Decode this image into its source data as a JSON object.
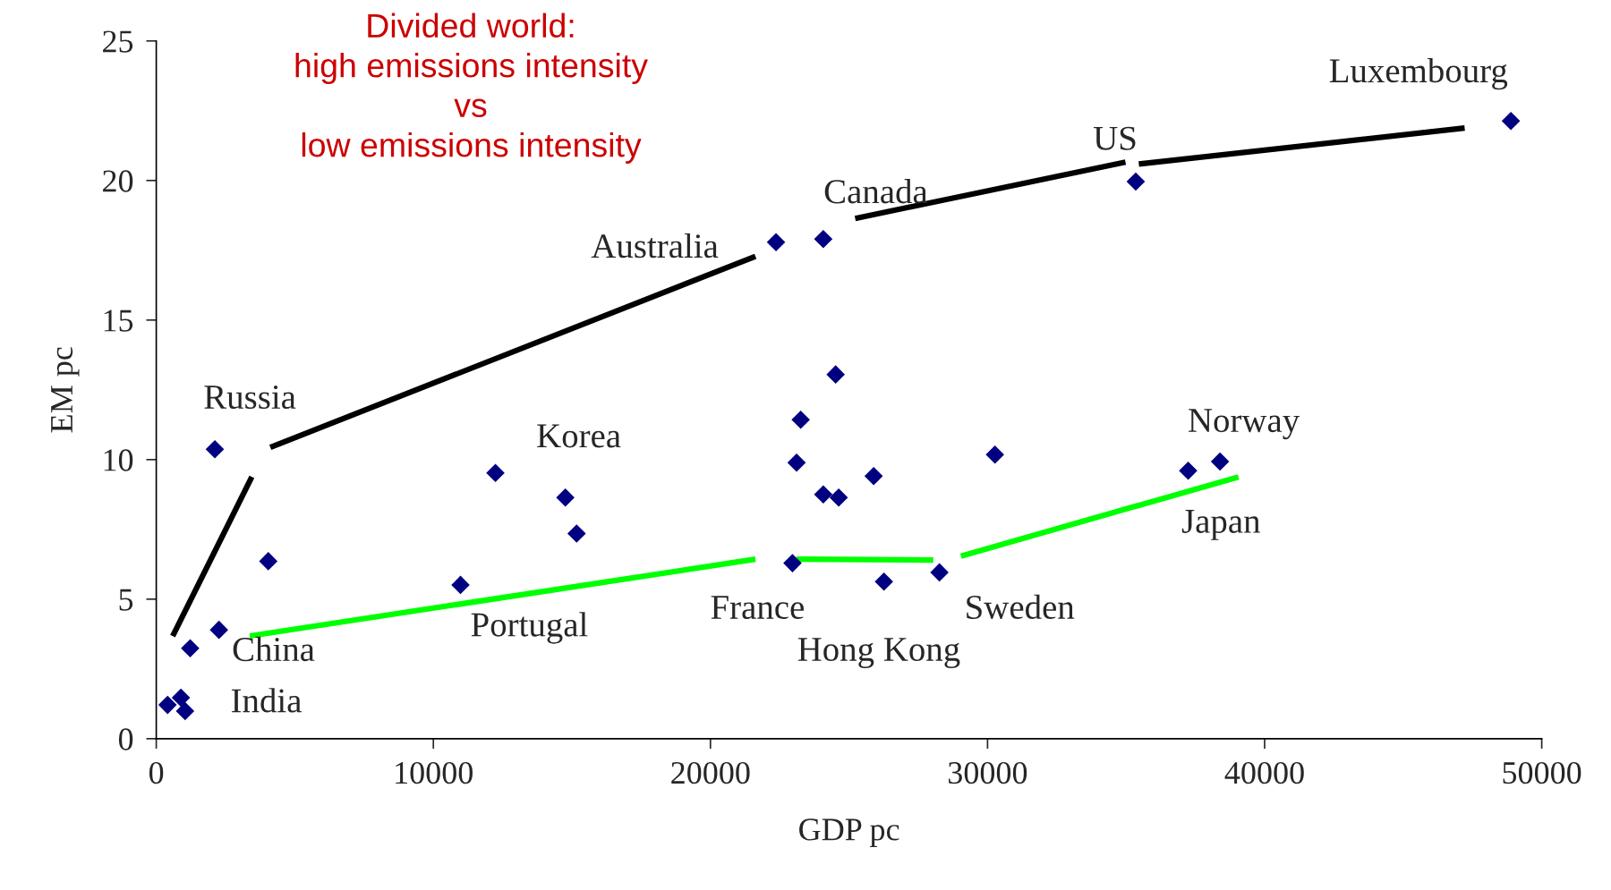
{
  "chart_data": {
    "type": "scatter",
    "xlabel": "GDP pc",
    "ylabel": "EM pc",
    "xlim": [
      0,
      50000
    ],
    "ylim": [
      0,
      25
    ],
    "xticks": [
      0,
      10000,
      20000,
      30000,
      40000,
      50000
    ],
    "yticks": [
      0,
      5,
      10,
      15,
      20,
      25
    ],
    "grid": false,
    "legend": false,
    "marker": "diamond",
    "series": [
      {
        "color": "#000080",
        "x": [
          408,
          890,
          1040,
          1224,
          2114,
          2263,
          4043,
          10979,
          12240,
          14763,
          15170,
          22366,
          22960,
          23108,
          23257,
          24072,
          24072,
          24518,
          24629,
          25890,
          26261,
          28264,
          30267,
          35349,
          37240,
          38390,
          48887
        ],
        "values": [
          1.21,
          1.47,
          0.99,
          3.24,
          10.37,
          3.9,
          6.36,
          5.51,
          9.52,
          8.64,
          7.35,
          17.79,
          6.29,
          9.89,
          11.43,
          17.9,
          8.75,
          13.05,
          8.64,
          9.41,
          5.63,
          5.96,
          10.18,
          19.96,
          9.6,
          9.93,
          22.13
        ]
      },
      {
        "type": "line",
        "color": "#000000",
        "marker": "none",
        "x": [
          593,
          3449,
          3800,
          4117,
          21624,
          23000,
          25223,
          34978,
          35200,
          35460,
          47219
        ],
        "values": [
          3.68,
          9.38,
          null,
          10.44,
          17.28,
          null,
          18.64,
          20.66,
          null,
          20.59,
          21.88
        ]
      },
      {
        "type": "line",
        "color": "#00ff00",
        "marker": "none",
        "x": [
          3375,
          21624,
          22300,
          23108,
          28041,
          28500,
          29042,
          39057
        ],
        "values": [
          3.68,
          6.43,
          null,
          6.43,
          6.4,
          null,
          6.54,
          9.38
        ]
      }
    ],
    "annotations": [
      "Divided world:\nhigh emissions intensity\nvs\nlow emissions intensity",
      {
        "text": "Luxembourg",
        "x": 48887,
        "y": 22.13
      },
      {
        "text": "US",
        "x": 35349,
        "y": 19.96
      },
      {
        "text": "Canada",
        "x": 24072,
        "y": 17.9
      },
      {
        "text": "Australia",
        "x": 22366,
        "y": 17.79
      },
      {
        "text": "Russia",
        "x": 2114,
        "y": 10.37
      },
      {
        "text": "Korea",
        "x": 14763,
        "y": 8.64
      },
      {
        "text": "Norway",
        "x": 38390,
        "y": 9.93
      },
      {
        "text": "Japan",
        "x": 37240,
        "y": 9.6
      },
      {
        "text": "France",
        "x": 22960,
        "y": 6.29
      },
      {
        "text": "Sweden",
        "x": 28264,
        "y": 5.96
      },
      {
        "text": "Hong Kong",
        "x": 26261,
        "y": 5.63
      },
      {
        "text": "Portugal",
        "x": 10979,
        "y": 5.51
      },
      {
        "text": "China",
        "x": 2263,
        "y": 3.9
      },
      {
        "text": "India",
        "x": 1040,
        "y": 0.99
      }
    ]
  }
}
